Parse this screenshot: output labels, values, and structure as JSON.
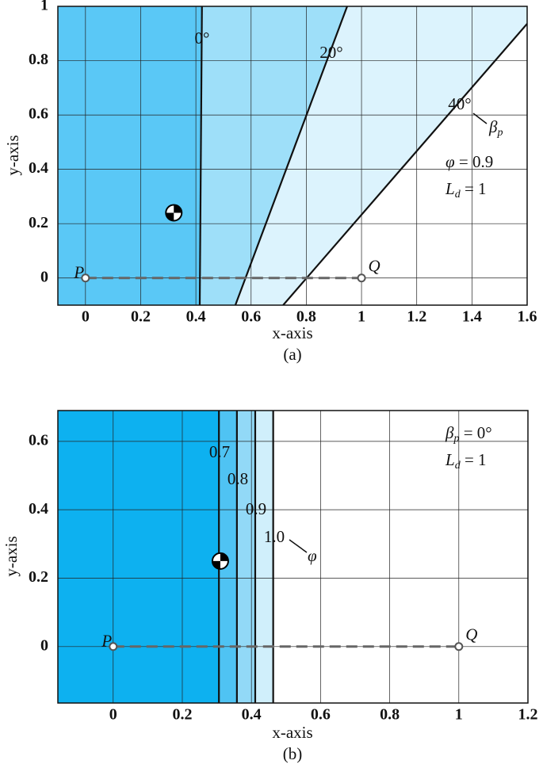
{
  "chart_data": [
    {
      "type": "line",
      "xlabel": "x-axis",
      "ylabel": "y-axis",
      "caption": "(a)",
      "xlim": [
        -0.1,
        1.6
      ],
      "ylim": [
        -0.1,
        1
      ],
      "xticks": [
        0,
        0.2,
        0.4,
        0.6,
        0.8,
        1,
        1.2,
        1.4,
        1.6
      ],
      "yticks": [
        0,
        0.2,
        0.4,
        0.6,
        0.8,
        1
      ],
      "grid": true,
      "series": [
        {
          "name": "0°",
          "color": "#111111",
          "fill": "#5ac8f6",
          "x": [
            0.414,
            0.422
          ],
          "values": [
            -0.1,
            1
          ]
        },
        {
          "name": "20°",
          "color": "#111111",
          "fill": "#9edff9",
          "x": [
            0.543,
            0.948
          ],
          "values": [
            -0.1,
            1
          ]
        },
        {
          "name": "40°",
          "color": "#111111",
          "fill": "#dcf3fd",
          "x": [
            0.716,
            1.6
          ],
          "values": [
            -0.1,
            0.936
          ]
        }
      ],
      "points": [
        {
          "name": "P",
          "x": 0,
          "y": 0
        },
        {
          "name": "Q",
          "x": 1,
          "y": 0
        }
      ],
      "cg": {
        "x": 0.32,
        "y": 0.24
      },
      "annotations": [
        {
          "main": "β",
          "sub": "p"
        },
        {
          "main": "φ",
          "rest": " = 0.9"
        },
        {
          "main": "L",
          "sub": "d",
          "rest": " = 1"
        }
      ]
    },
    {
      "type": "line",
      "xlabel": "x-axis",
      "ylabel": "y-axis",
      "caption": "(b)",
      "xlim": [
        -0.16,
        1.2
      ],
      "ylim": [
        -0.165,
        0.69
      ],
      "xticks": [
        0,
        0.2,
        0.4,
        0.6,
        0.8,
        1,
        1.2
      ],
      "yticks": [
        0,
        0.2,
        0.4,
        0.6
      ],
      "grid": true,
      "series": [
        {
          "name": "0.7",
          "color": "#111111",
          "fill": "#0db1f0",
          "x": [
            0.306,
            0.306
          ],
          "values": [
            -0.165,
            0.69
          ]
        },
        {
          "name": "0.8",
          "color": "#111111",
          "fill": "#4fc3f3",
          "x": [
            0.358,
            0.358
          ],
          "values": [
            -0.165,
            0.69
          ]
        },
        {
          "name": "0.9",
          "color": "#111111",
          "fill": "#92d9f7",
          "x": [
            0.411,
            0.411
          ],
          "values": [
            -0.165,
            0.69
          ]
        },
        {
          "name": "1.0",
          "color": "#111111",
          "fill": "#d0effb",
          "x": [
            0.463,
            0.463
          ],
          "values": [
            -0.165,
            0.69
          ]
        }
      ],
      "points": [
        {
          "name": "P",
          "x": 0,
          "y": 0
        },
        {
          "name": "Q",
          "x": 1,
          "y": 0
        }
      ],
      "cg": {
        "x": 0.31,
        "y": 0.25
      },
      "annotations": [
        {
          "main": "β",
          "sub": "p",
          "rest": " = 0°"
        },
        {
          "main": "L",
          "sub": "d",
          "rest": " = 1"
        },
        {
          "main": "φ"
        }
      ]
    }
  ]
}
